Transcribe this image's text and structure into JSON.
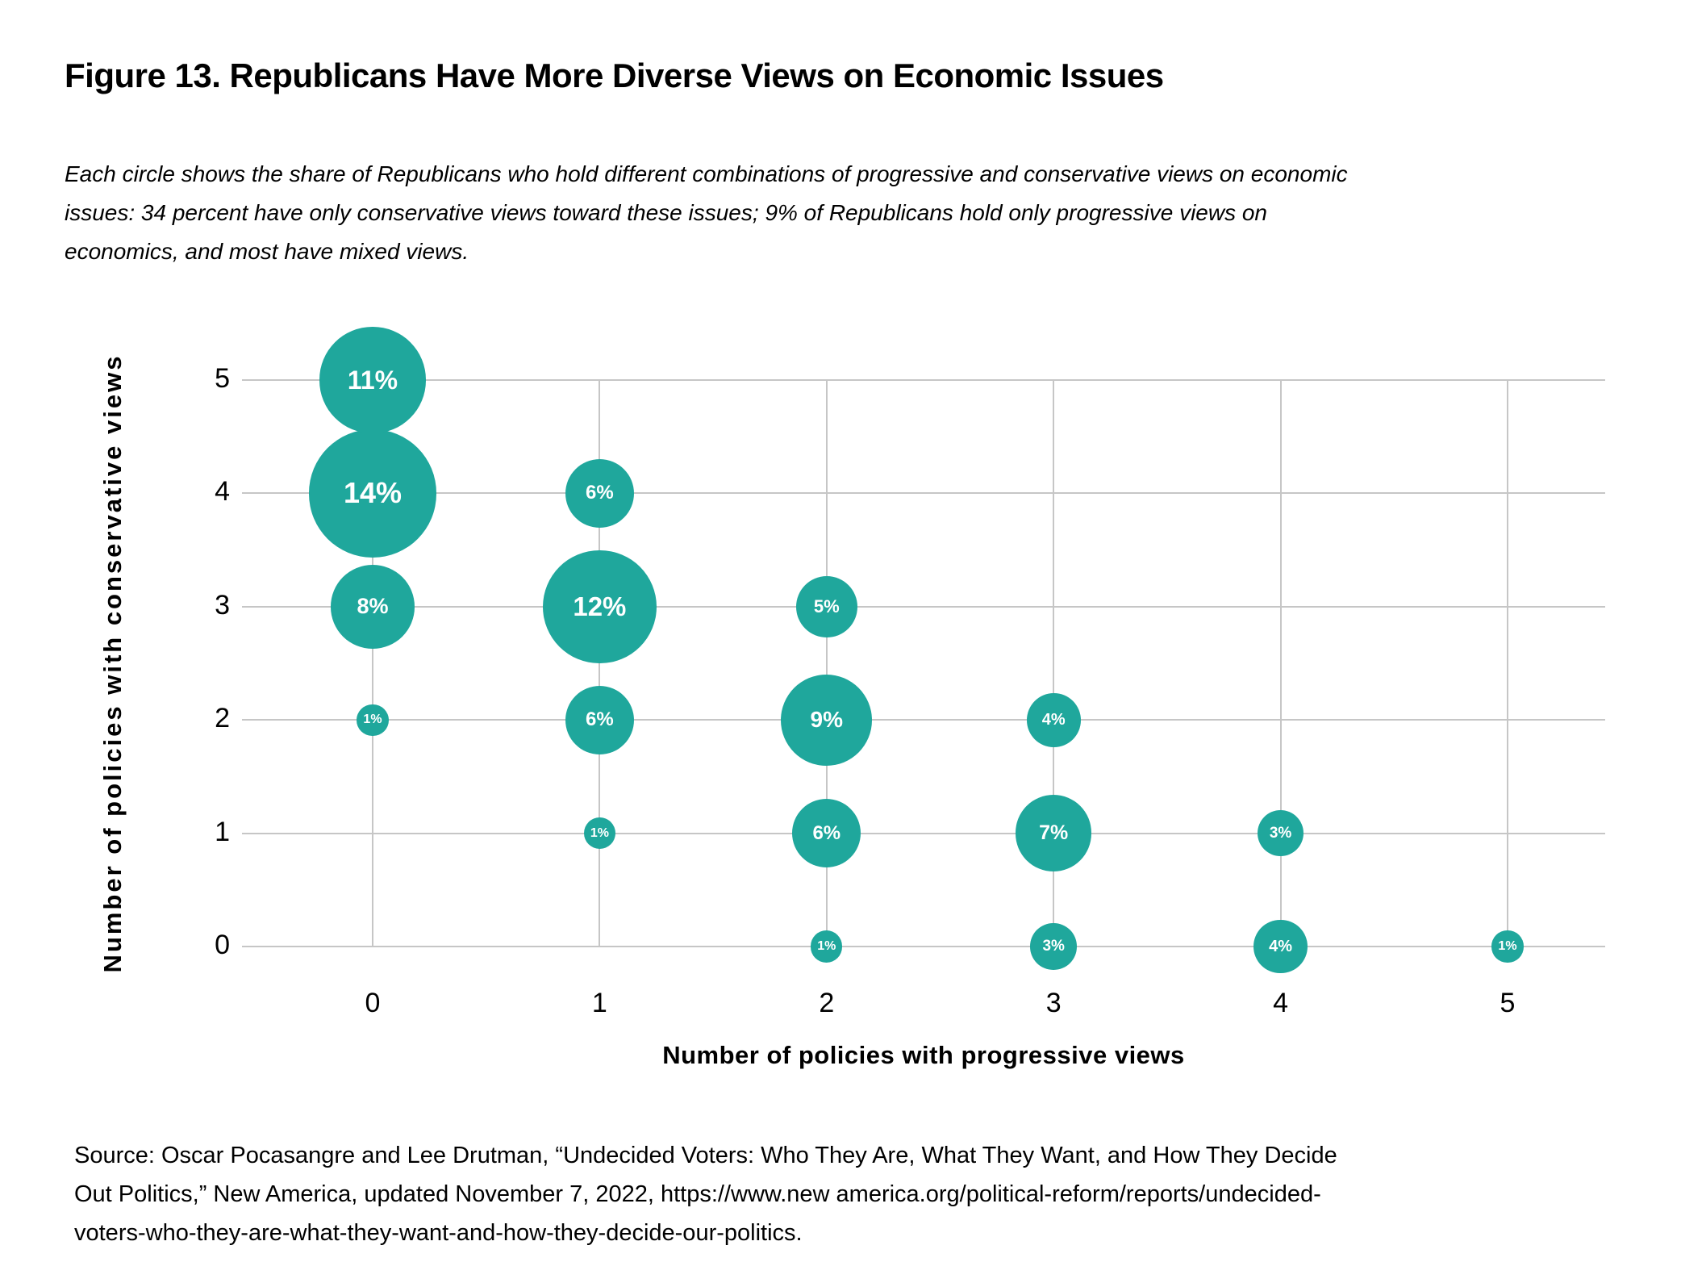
{
  "figure": {
    "title": "Figure 13. Republicans Have More Diverse Views on Economic Issues",
    "subtitle_lines": [
      "Each circle shows the share of Republicans who hold different combinations of progressive and conservative views on economic",
      "issues: 34 percent have only conservative views toward these issues; 9% of Republicans hold only progressive views on",
      "economics, and most have mixed views."
    ],
    "source_lines": [
      "Source: Oscar Pocasangre and Lee Drutman, “Undecided Voters: Who They Are, What They Want, and How They Decide",
      "Out Politics,” New America, updated November 7, 2022, https://www.new america.org/political-reform/reports/undecided-",
      "voters-who-they-are-what-they-want-and-how-they-decide-our-politics."
    ]
  },
  "chart_data": {
    "type": "scatter",
    "subtype": "bubble",
    "xlabel": "Number of policies with progressive views",
    "ylabel": "Number of policies with conservative views",
    "x_ticks": [
      "0",
      "1",
      "2",
      "3",
      "4",
      "5"
    ],
    "y_ticks_top_to_bottom": [
      "5",
      "4",
      "3",
      "2",
      "1",
      "0"
    ],
    "xlim": [
      -0.6,
      5.4
    ],
    "ylim": [
      -0.1,
      5.1
    ],
    "grid": true,
    "legend": "none",
    "value_unit": "%",
    "colors": {
      "bubble": "#1fa79c",
      "gridline": "#c6c6c6",
      "bubble_text": "#ffffff",
      "text": "#000000"
    },
    "points": [
      {
        "x": 0,
        "y": 5,
        "value": 11,
        "label": "11%"
      },
      {
        "x": 0,
        "y": 4,
        "value": 14,
        "label": "14%"
      },
      {
        "x": 0,
        "y": 3,
        "value": 8,
        "label": "8%"
      },
      {
        "x": 0,
        "y": 2,
        "value": 1,
        "label": "1%"
      },
      {
        "x": 1,
        "y": 4,
        "value": 6,
        "label": "6%"
      },
      {
        "x": 1,
        "y": 3,
        "value": 12,
        "label": "12%"
      },
      {
        "x": 1,
        "y": 2,
        "value": 6,
        "label": "6%"
      },
      {
        "x": 1,
        "y": 1,
        "value": 1,
        "label": "1%"
      },
      {
        "x": 2,
        "y": 3,
        "value": 5,
        "label": "5%"
      },
      {
        "x": 2,
        "y": 2,
        "value": 9,
        "label": "9%"
      },
      {
        "x": 2,
        "y": 1,
        "value": 6,
        "label": "6%"
      },
      {
        "x": 2,
        "y": 0,
        "value": 1,
        "label": "1%"
      },
      {
        "x": 3,
        "y": 2,
        "value": 4,
        "label": "4%"
      },
      {
        "x": 3,
        "y": 1,
        "value": 7,
        "label": "7%"
      },
      {
        "x": 3,
        "y": 0,
        "value": 3,
        "label": "3%"
      },
      {
        "x": 4,
        "y": 1,
        "value": 3,
        "label": "3%"
      },
      {
        "x": 4,
        "y": 0,
        "value": 4,
        "label": "4%"
      },
      {
        "x": 5,
        "y": 0,
        "value": 1,
        "label": "1%"
      }
    ]
  }
}
